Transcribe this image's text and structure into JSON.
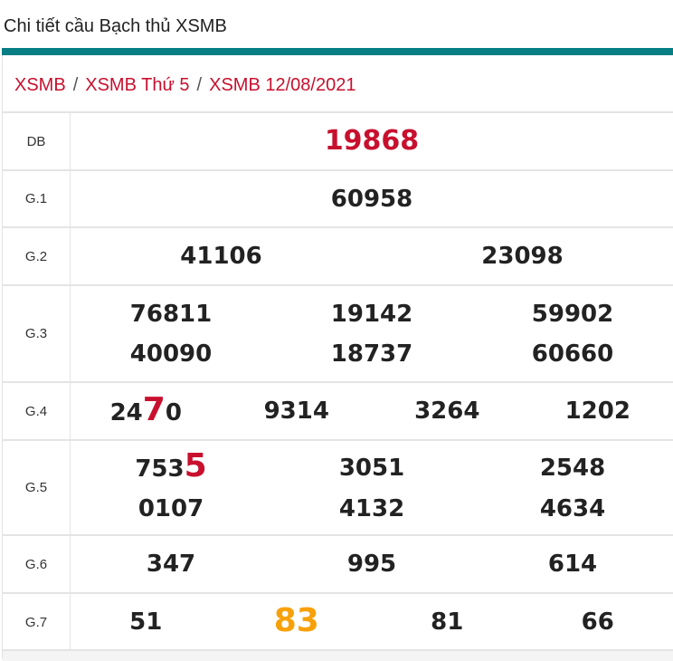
{
  "page_title": "Chi tiết cầu Bạch thủ XSMB",
  "colors": {
    "accent_bar": "#067e84",
    "highlight_red": "#c8102e",
    "highlight_orange": "#f7a10a"
  },
  "breadcrumb": [
    {
      "label": "XSMB"
    },
    {
      "label": "XSMB Thứ 5"
    },
    {
      "label": "XSMB 12/08/2021"
    }
  ],
  "breadcrumb_separator": "/",
  "results": [
    {
      "label": "DB",
      "cols": 1,
      "numbers": [
        {
          "pre": "19868"
        }
      ]
    },
    {
      "label": "G.1",
      "cols": 1,
      "numbers": [
        {
          "pre": "60958"
        }
      ]
    },
    {
      "label": "G.2",
      "cols": 2,
      "numbers": [
        {
          "pre": "41106"
        },
        {
          "pre": "23098"
        }
      ]
    },
    {
      "label": "G.3",
      "cols": 3,
      "numbers": [
        {
          "pre": "76811"
        },
        {
          "pre": "19142"
        },
        {
          "pre": "59902"
        },
        {
          "pre": "40090"
        },
        {
          "pre": "18737"
        },
        {
          "pre": "60660"
        }
      ]
    },
    {
      "label": "G.4",
      "cols": 4,
      "numbers": [
        {
          "pre": "24",
          "hi": "7",
          "post": "0",
          "hi_color": "red"
        },
        {
          "pre": "9314"
        },
        {
          "pre": "3264"
        },
        {
          "pre": "1202"
        }
      ]
    },
    {
      "label": "G.5",
      "cols": 3,
      "numbers": [
        {
          "pre": "753",
          "hi": "5",
          "hi_color": "red"
        },
        {
          "pre": "3051"
        },
        {
          "pre": "2548"
        },
        {
          "pre": "0107"
        },
        {
          "pre": "4132"
        },
        {
          "pre": "4634"
        }
      ]
    },
    {
      "label": "G.6",
      "cols": 3,
      "numbers": [
        {
          "pre": "347"
        },
        {
          "pre": "995"
        },
        {
          "pre": "614"
        }
      ]
    },
    {
      "label": "G.7",
      "cols": 4,
      "numbers": [
        {
          "pre": "51"
        },
        {
          "hi": "83",
          "hi_color": "orange"
        },
        {
          "pre": "81"
        },
        {
          "pre": "66"
        }
      ]
    }
  ]
}
